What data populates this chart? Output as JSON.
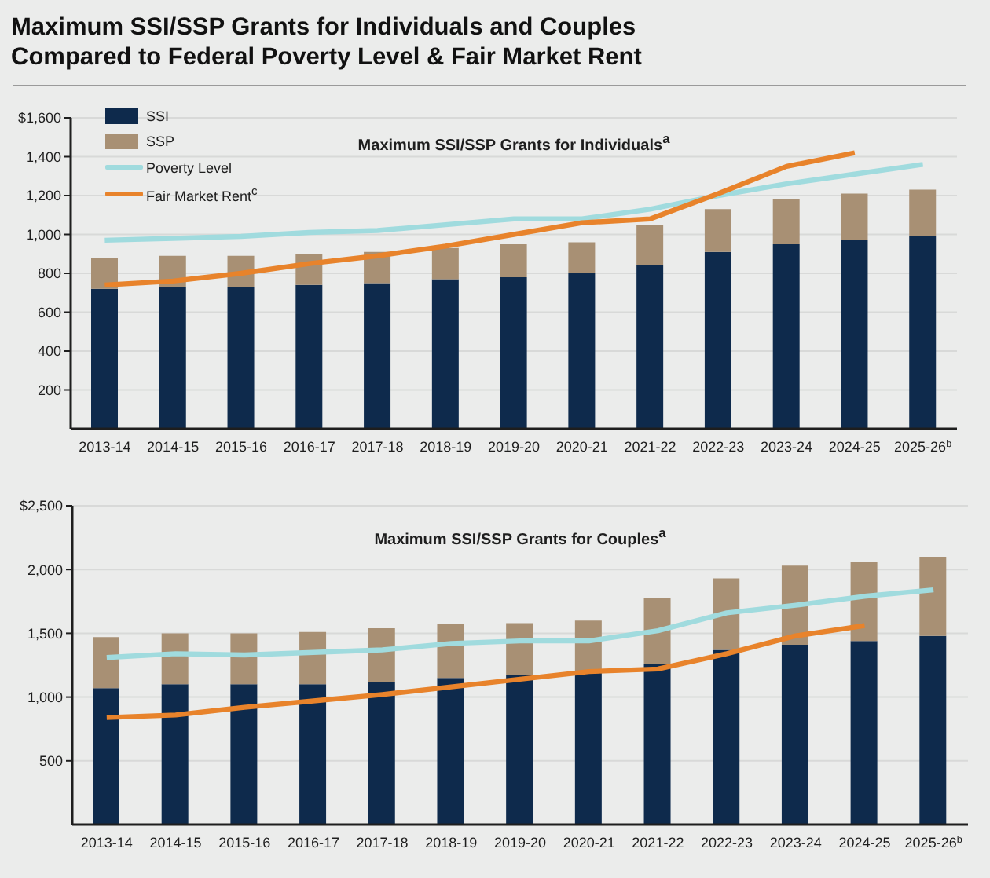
{
  "chart_data": [
    {
      "type": "bar",
      "title": "Maximum SSI/SSP Grants for Individuals and Couples Compared to Federal Poverty Level & Fair Market Rent",
      "subtitle": "Maximum SSI/SSP Grants for Individuals$^{a}$",
      "categories": [
        "2013-14",
        "2014-15",
        "2015-16",
        "2016-17",
        "2017-18",
        "2018-19",
        "2019-20",
        "2020-21",
        "2021-22",
        "2022-23",
        "2023-24",
        "2024-25",
        "2025-26$^{b}$"
      ],
      "series": [
        {
          "name": "SSI",
          "color": "#0e2a4c",
          "values": [
            720,
            730,
            730,
            740,
            750,
            770,
            780,
            800,
            840,
            910,
            950,
            970,
            990
          ]
        },
        {
          "name": "SSP",
          "color": "#a89074",
          "values": [
            160,
            160,
            160,
            160,
            160,
            160,
            170,
            160,
            210,
            220,
            230,
            240,
            240
          ]
        },
        {
          "name": "Poverty Level",
          "type": "line",
          "color": "#a0dbde",
          "values": [
            970,
            980,
            990,
            1010,
            1020,
            1050,
            1080,
            1080,
            1130,
            1200,
            1260,
            1310,
            1360
          ]
        },
        {
          "name": "Fair Market Rent$^{c}$",
          "type": "line",
          "color": "#e8832b",
          "values": [
            740,
            760,
            800,
            850,
            890,
            940,
            1000,
            1060,
            1080,
            1210,
            1350,
            1420,
            null
          ]
        }
      ],
      "stacked": true,
      "ylim": [
        0,
        1600
      ],
      "yticks": [
        200,
        400,
        600,
        800,
        {
          "value": 1000,
          "label": "1,000"
        },
        {
          "value": 1200,
          "label": "1,200"
        },
        {
          "value": 1400,
          "label": "1,400"
        },
        {
          "value": 1600,
          "label": "$1,600"
        }
      ],
      "grid": "y",
      "legend": "top left"
    },
    {
      "type": "bar",
      "title": "Maximum SSI/SSP Grants for Couples$^{a}$",
      "categories": [
        "2013-14",
        "2014-15",
        "2015-16",
        "2016-17",
        "2017-18",
        "2018-19",
        "2019-20",
        "2020-21",
        "2021-22",
        "2022-23",
        "2023-24",
        "2024-25",
        "2025-26$^{b}$"
      ],
      "series": [
        {
          "color": "#0e2a4c",
          "values": [
            1070,
            1100,
            1100,
            1100,
            1120,
            1150,
            1170,
            1190,
            1260,
            1370,
            1410,
            1440,
            1480
          ]
        },
        {
          "color": "#a89074",
          "values": [
            400,
            400,
            400,
            410,
            420,
            420,
            410,
            410,
            520,
            560,
            620,
            620,
            620
          ]
        },
        {
          "type": "line",
          "color": "#a0dbde",
          "values": [
            1310,
            1340,
            1330,
            1350,
            1370,
            1420,
            1440,
            1440,
            1520,
            1660,
            1720,
            1790,
            1840
          ]
        },
        {
          "type": "line",
          "color": "#e8832b",
          "values": [
            840,
            860,
            920,
            970,
            1020,
            1080,
            1140,
            1200,
            1220,
            1340,
            1480,
            1560,
            null
          ]
        }
      ],
      "stacked": true,
      "ylim": [
        0,
        2500
      ],
      "yticks": [
        500,
        {
          "value": 1000,
          "label": "1,000"
        },
        {
          "value": 1500,
          "label": "1,500"
        },
        {
          "value": 2000,
          "label": "2,000"
        },
        {
          "value": 2500,
          "label": "$2,500"
        }
      ],
      "grid": "y"
    }
  ]
}
